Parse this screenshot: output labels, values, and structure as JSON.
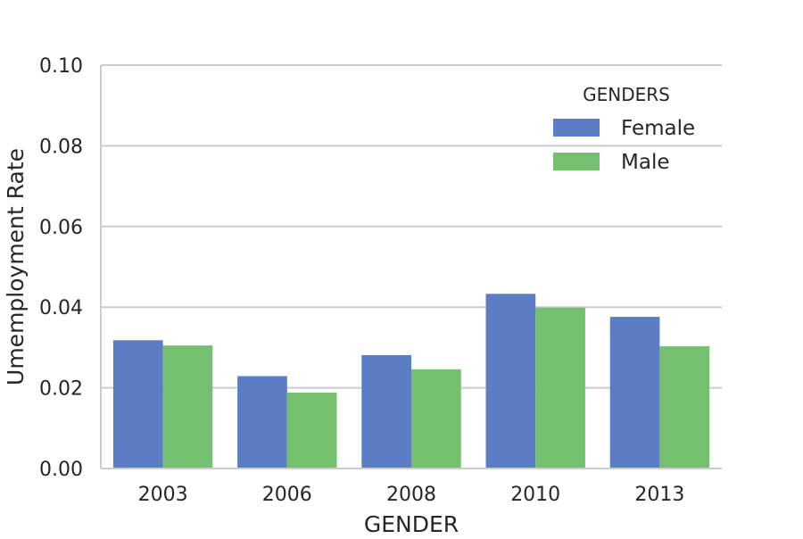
{
  "chart_data": {
    "type": "bar",
    "xlabel": "GENDER",
    "ylabel": "Umemployment Rate",
    "ylim": [
      0,
      0.1
    ],
    "yticks": [
      "0.00",
      "0.02",
      "0.04",
      "0.06",
      "0.08",
      "0.10"
    ],
    "categories": [
      "2003",
      "2006",
      "2008",
      "2010",
      "2013"
    ],
    "series": [
      {
        "name": "Female",
        "color": "#5a7dc3",
        "values": [
          0.0318,
          0.0229,
          0.0281,
          0.0433,
          0.0376
        ]
      },
      {
        "name": "Male",
        "color": "#74c06f",
        "values": [
          0.0305,
          0.0188,
          0.0246,
          0.0399,
          0.0303
        ]
      }
    ],
    "legend": {
      "title": "GENDERS",
      "placement": "top-right"
    },
    "grid": "horizontal"
  }
}
